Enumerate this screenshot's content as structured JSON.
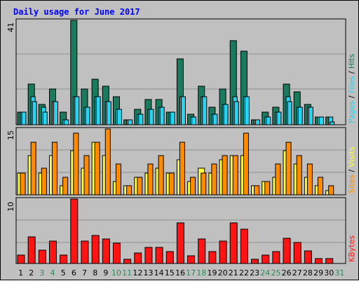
{
  "title": "Daily usage for June 2017",
  "colors": {
    "background": "#c0c0c0",
    "panel": "#c0c0c0",
    "grid": "#909090",
    "hits": "#1a7a5e",
    "files": "#28d4f0",
    "pages": "#28d4f0",
    "visits": "#ffff40",
    "sites": "#ff8c00",
    "kbytes": "#ff1414",
    "weekday_label": "#000000",
    "weekend_label": "#2b8a5a"
  },
  "chart_data": [
    {
      "type": "bar",
      "panel": "hits-files-pages",
      "axis_max_label": "41",
      "legend": [
        "Pages",
        "Files",
        "Hits"
      ],
      "legend_separator": " / ",
      "categories": [
        "1",
        "2",
        "3",
        "4",
        "5",
        "6",
        "7",
        "8",
        "9",
        "10",
        "11",
        "12",
        "13",
        "14",
        "15",
        "16",
        "17",
        "18",
        "19",
        "20",
        "21",
        "22",
        "23",
        "24",
        "25",
        "26",
        "27",
        "28",
        "29",
        "30",
        "31"
      ],
      "ylim": [
        0,
        41
      ],
      "series": [
        {
          "name": "Hits",
          "values": [
            5,
            16,
            8,
            14,
            5,
            41,
            14,
            18,
            15,
            11,
            2,
            6,
            10,
            10,
            5,
            26,
            4,
            15,
            7,
            14,
            33,
            29,
            2,
            5,
            7,
            16,
            13,
            8,
            3,
            3,
            0
          ]
        },
        {
          "name": "Files",
          "values": [
            5,
            11,
            7,
            9,
            2,
            11,
            7,
            11,
            9,
            6,
            2,
            4,
            6,
            7,
            5,
            11,
            3,
            11,
            4,
            8,
            11,
            11,
            2,
            3,
            5,
            11,
            7,
            7,
            3,
            3,
            0
          ]
        },
        {
          "name": "Pages",
          "values": [
            5,
            9,
            5,
            9,
            2,
            11,
            7,
            11,
            9,
            6,
            2,
            4,
            6,
            7,
            5,
            11,
            3,
            11,
            4,
            8,
            9,
            11,
            2,
            3,
            5,
            9,
            7,
            7,
            3,
            1,
            0
          ]
        }
      ]
    },
    {
      "type": "bar",
      "panel": "visits-sites",
      "axis_max_label": "15",
      "legend": [
        "Sites",
        "Visits"
      ],
      "legend_separator": " / ",
      "categories": [
        "1",
        "2",
        "3",
        "4",
        "5",
        "6",
        "7",
        "8",
        "9",
        "10",
        "11",
        "12",
        "13",
        "14",
        "15",
        "16",
        "17",
        "18",
        "19",
        "20",
        "21",
        "22",
        "23",
        "24",
        "25",
        "26",
        "27",
        "28",
        "29",
        "30",
        "31"
      ],
      "ylim": [
        0,
        15
      ],
      "series": [
        {
          "name": "Visits",
          "values": [
            5,
            9,
            5,
            9,
            2,
            10,
            6,
            12,
            9,
            3,
            2,
            4,
            5,
            6,
            5,
            8,
            3,
            6,
            5,
            8,
            9,
            9,
            2,
            3,
            4,
            10,
            7,
            4,
            2,
            1,
            0
          ]
        },
        {
          "name": "Sites",
          "values": [
            5,
            12,
            6,
            12,
            4,
            14,
            9,
            12,
            15,
            7,
            2,
            4,
            7,
            9,
            5,
            12,
            4,
            5,
            7,
            9,
            9,
            14,
            2,
            3,
            7,
            12,
            9,
            7,
            4,
            2,
            0
          ]
        }
      ]
    },
    {
      "type": "bar",
      "panel": "kbytes",
      "axis_max_label": "10",
      "legend": [
        "KBytes"
      ],
      "categories": [
        "1",
        "2",
        "3",
        "4",
        "5",
        "6",
        "7",
        "8",
        "9",
        "10",
        "11",
        "12",
        "13",
        "14",
        "15",
        "16",
        "17",
        "18",
        "19",
        "20",
        "21",
        "22",
        "23",
        "24",
        "25",
        "26",
        "27",
        "28",
        "29",
        "30",
        "31"
      ],
      "ylim": [
        0,
        10
      ],
      "series": [
        {
          "name": "KBytes",
          "values": [
            1.3,
            4.1,
            2.1,
            3.5,
            1.3,
            10,
            3.5,
            4.4,
            3.8,
            3.1,
            0.6,
            1.6,
            2.5,
            2.5,
            1.9,
            6.3,
            1.2,
            3.8,
            1.9,
            3.5,
            6.3,
            5.3,
            0.6,
            1.3,
            1.9,
            3.9,
            3.3,
            2.0,
            0.8,
            0.8,
            0
          ]
        }
      ]
    }
  ],
  "x_axis": {
    "labels": [
      "1",
      "2",
      "3",
      "4",
      "5",
      "6",
      "7",
      "8",
      "9",
      "10",
      "11",
      "12",
      "13",
      "14",
      "15",
      "16",
      "17",
      "18",
      "19",
      "20",
      "21",
      "22",
      "23",
      "24",
      "25",
      "26",
      "27",
      "28",
      "29",
      "30",
      "31"
    ],
    "weekend_days": [
      3,
      4,
      10,
      11,
      17,
      18,
      24,
      25,
      31
    ]
  }
}
